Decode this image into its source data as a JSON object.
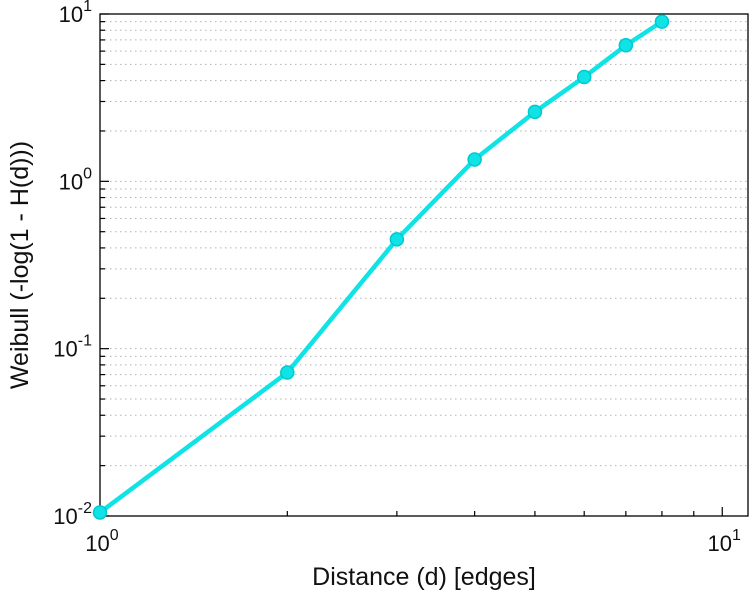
{
  "figure": {
    "background": "#ffffff"
  },
  "chart_data": {
    "type": "line",
    "title": "",
    "xlabel": "Distance (d) [edges]",
    "ylabel": "Weibull (-log(1 - H(d)))",
    "xscale": "log",
    "yscale": "log",
    "xlim": [
      1,
      11
    ],
    "ylim": [
      0.01,
      10
    ],
    "x": [
      1,
      2,
      3,
      4,
      5,
      6,
      7,
      8
    ],
    "y": [
      0.0105,
      0.072,
      0.45,
      1.35,
      2.6,
      4.2,
      6.5,
      9.0
    ],
    "x_major_ticks": [
      1,
      10
    ],
    "x_tick_labels": [
      "10^0",
      "10^1"
    ],
    "y_major_ticks": [
      0.01,
      0.1,
      1,
      10
    ],
    "y_tick_labels": [
      "10^-2",
      "10^-1",
      "10^0",
      "10^1"
    ],
    "grid": "horizontal dotted lines at log major and minor ticks",
    "legend_position": "none",
    "line_color": "#0fe3e6",
    "marker": "o",
    "marker_color": "#0fe3e6",
    "marker_edge_color": "#00c8cf",
    "axis_color": "#000000",
    "grid_color": "#b3b3b3",
    "text_color": "#111111"
  }
}
